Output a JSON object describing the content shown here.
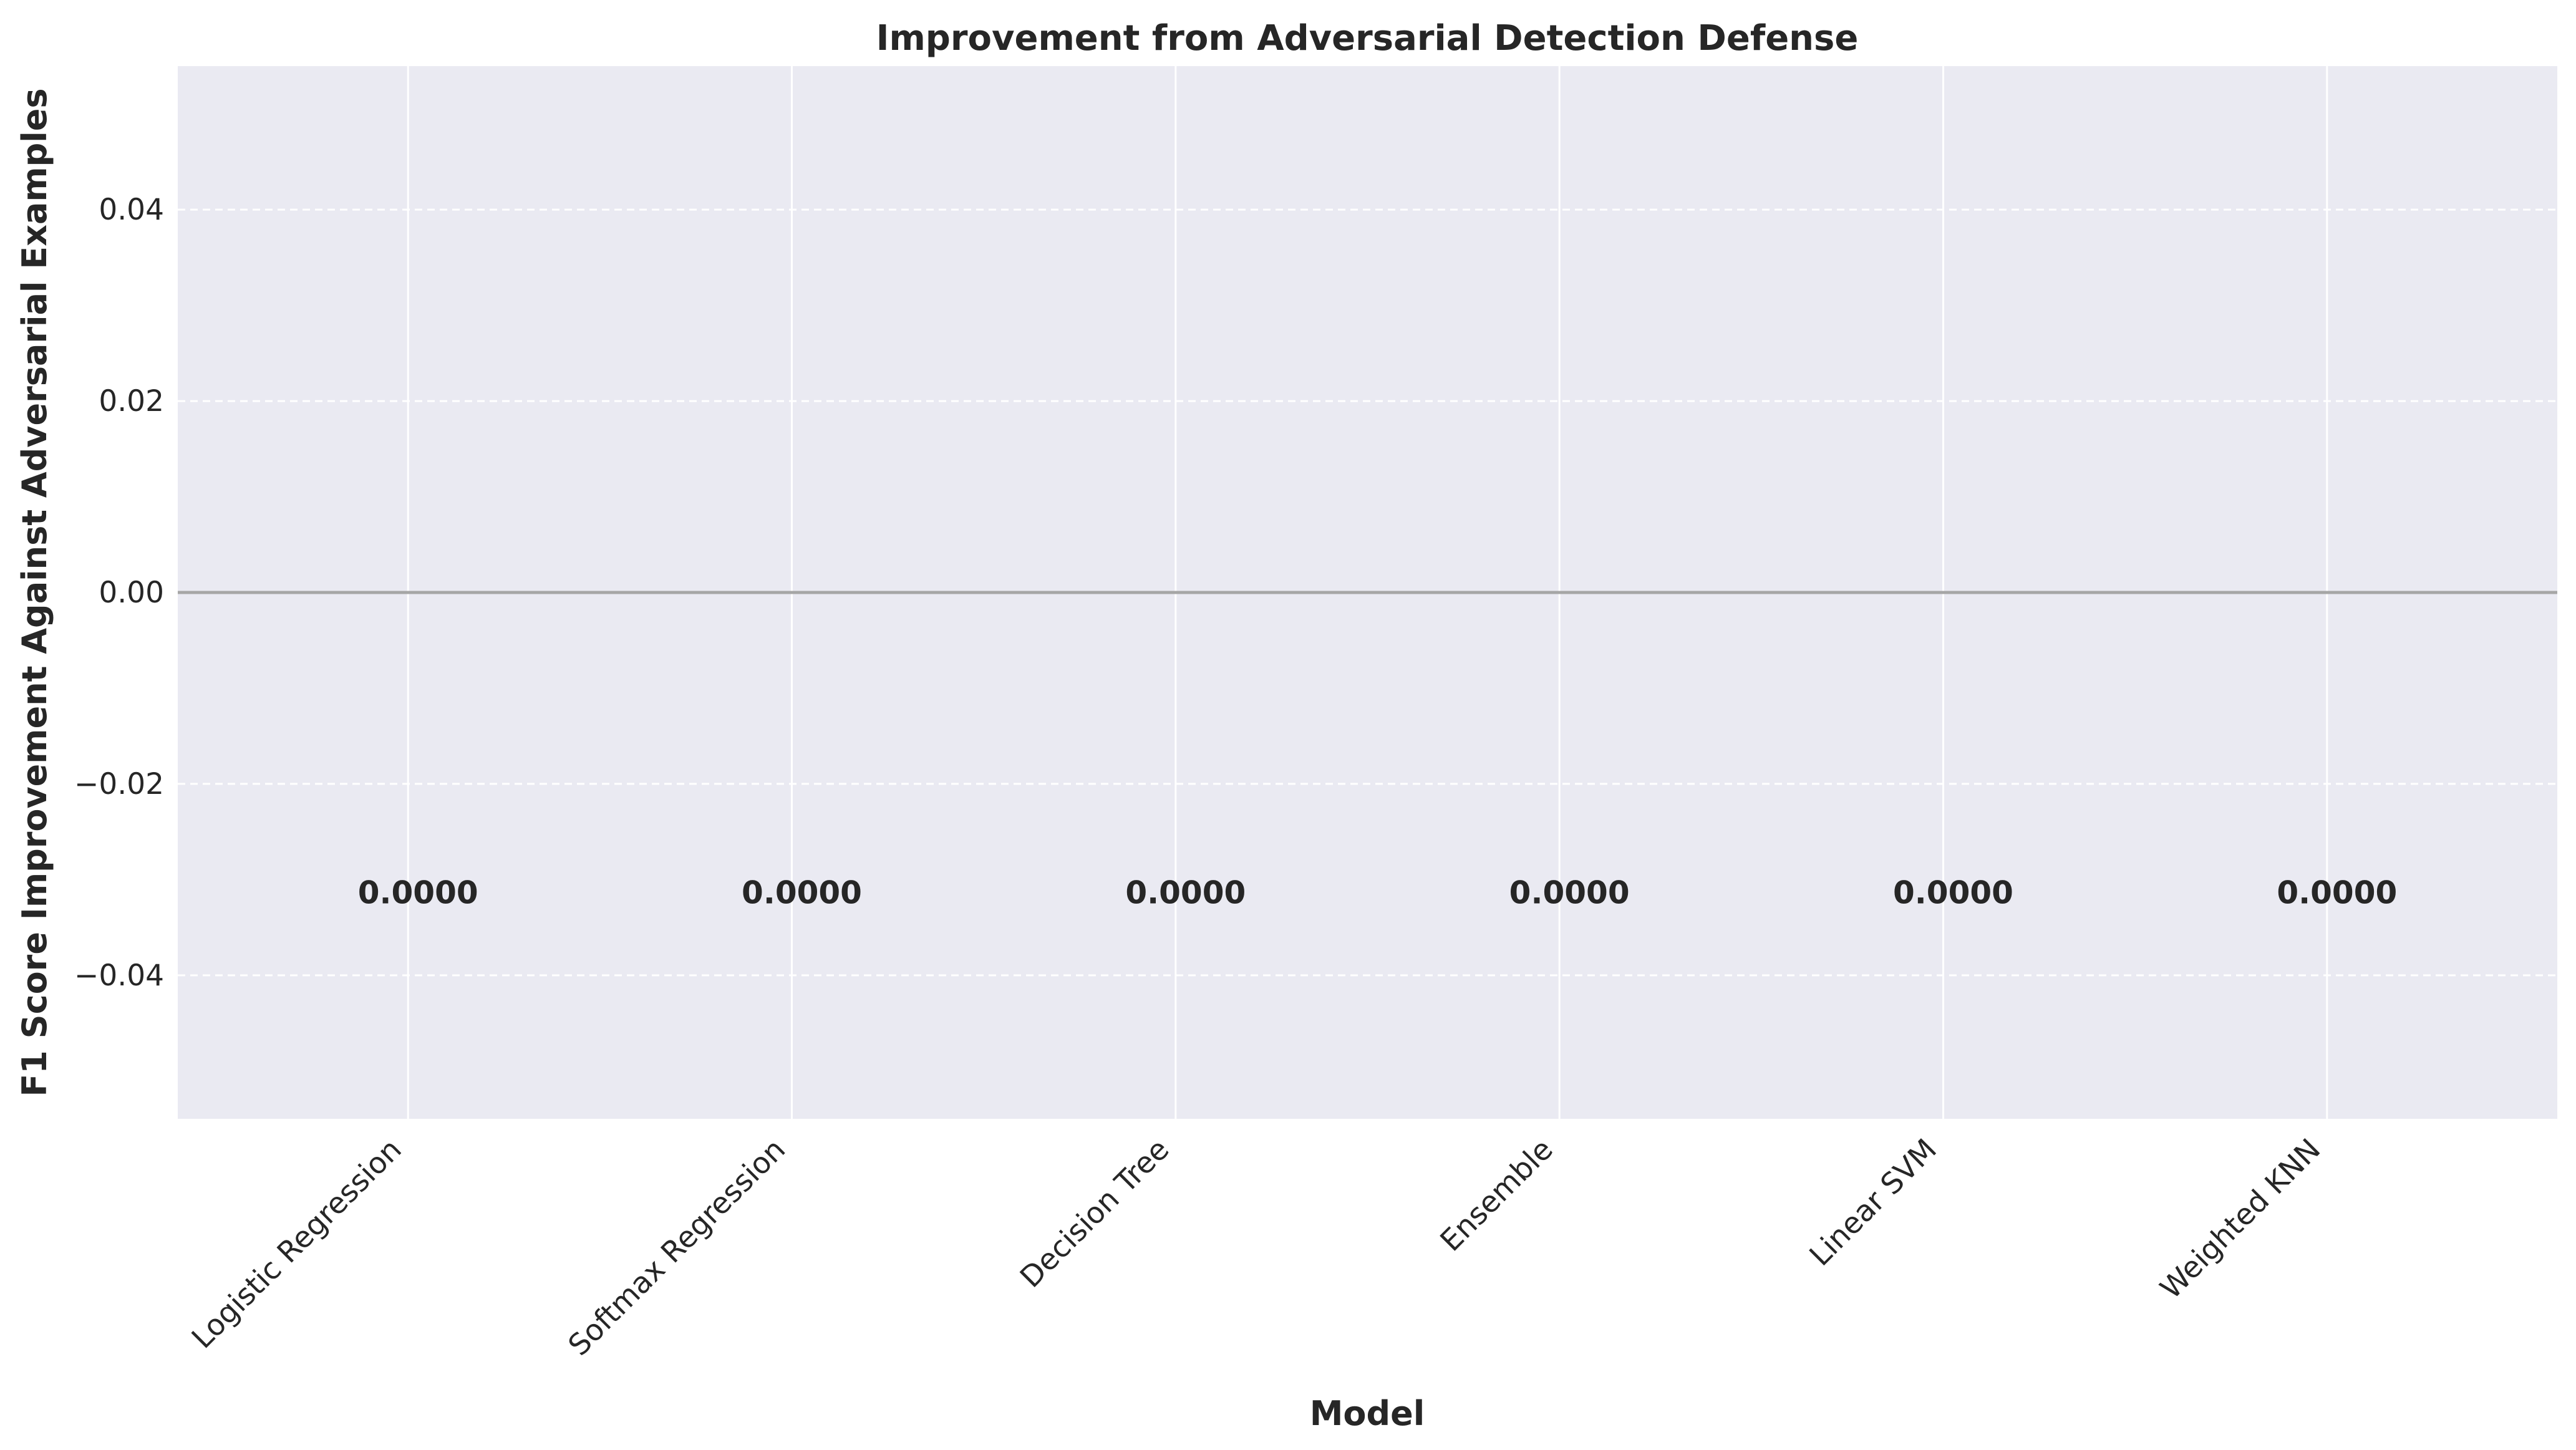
{
  "chart_data": {
    "type": "bar",
    "title": "Improvement from Adversarial Detection Defense",
    "xlabel": "Model",
    "ylabel": "F1 Score Improvement Against Adversarial Examples",
    "categories": [
      "Logistic Regression",
      "Softmax Regression",
      "Decision Tree",
      "Ensemble",
      "Linear SVM",
      "Weighted KNN"
    ],
    "values": [
      0,
      0,
      0,
      0,
      0,
      0
    ],
    "data_labels": [
      "0.0000",
      "0.0000",
      "0.0000",
      "0.0000",
      "0.0000",
      "0.0000"
    ],
    "ylim": [
      -0.055,
      0.055
    ],
    "yticks": [
      -0.04,
      -0.02,
      0.0,
      0.02,
      0.04
    ],
    "ytick_labels": [
      "−0.04",
      "−0.02",
      "0.00",
      "0.02",
      "0.04"
    ],
    "grid": true,
    "colors": {
      "plot_background": "#eaeaf2",
      "grid": "#ffffff",
      "zero_line": "#a6a6a6",
      "text": "#262626"
    }
  }
}
